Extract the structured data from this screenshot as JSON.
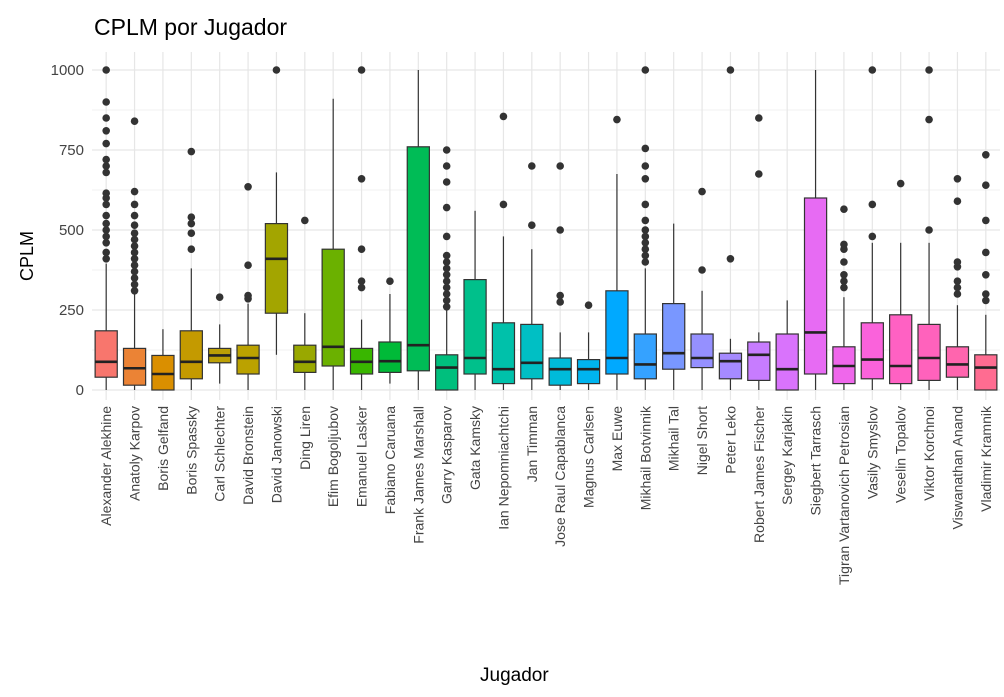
{
  "chart_data": {
    "type": "box",
    "title": "CPLM por Jugador",
    "xlabel": "Jugador",
    "ylabel": "CPLM",
    "ylim": [
      0,
      1000
    ],
    "yticks": [
      0,
      250,
      500,
      750,
      1000
    ],
    "grid": true,
    "legend": "none",
    "categories": [
      "Alexander Alekhine",
      "Anatoly Karpov",
      "Boris Gelfand",
      "Boris Spassky",
      "Carl Schlechter",
      "David Bronstein",
      "David Janowski",
      "Ding Liren",
      "Efim Bogoljubov",
      "Emanuel Lasker",
      "Fabiano Caruana",
      "Frank James Marshall",
      "Garry Kasparov",
      "Gata Kamsky",
      "Ian Nepomniachtchi",
      "Jan Timman",
      "Jose Raul Capablanca",
      "Magnus Carlsen",
      "Max Euwe",
      "Mikhail Botvinnik",
      "Mikhail Tal",
      "Nigel Short",
      "Peter Leko",
      "Robert James Fischer",
      "Sergey Karjakin",
      "Siegbert Tarrasch",
      "Tigran Vartanovich Petrosian",
      "Vasily Smyslov",
      "Veselin Topalov",
      "Viktor Korchnoi",
      "Viswanathan Anand",
      "Vladimir Kramnik"
    ],
    "boxes": [
      {
        "q1": 40,
        "median": 88,
        "q3": 185,
        "whisker_low": 0,
        "whisker_high": 395,
        "outliers": [
          410,
          430,
          460,
          480,
          500,
          520,
          545,
          580,
          600,
          615,
          680,
          700,
          720,
          770,
          810,
          850,
          900,
          1000
        ],
        "color": "#F8766D"
      },
      {
        "q1": 15,
        "median": 68,
        "q3": 130,
        "whisker_low": 0,
        "whisker_high": 300,
        "outliers": [
          310,
          330,
          350,
          370,
          390,
          410,
          430,
          450,
          470,
          490,
          515,
          545,
          580,
          620,
          840
        ],
        "color": "#EB8335"
      },
      {
        "q1": 0,
        "median": 50,
        "q3": 108,
        "whisker_low": 0,
        "whisker_high": 190,
        "outliers": [],
        "color": "#DA8F00"
      },
      {
        "q1": 35,
        "median": 88,
        "q3": 185,
        "whisker_low": 0,
        "whisker_high": 380,
        "outliers": [
          440,
          490,
          520,
          540,
          745
        ],
        "color": "#C49A00"
      },
      {
        "q1": 85,
        "median": 108,
        "q3": 130,
        "whisker_low": 20,
        "whisker_high": 205,
        "outliers": [
          290
        ],
        "color": "#BCA005"
      },
      {
        "q1": 50,
        "median": 100,
        "q3": 140,
        "whisker_low": 0,
        "whisker_high": 270,
        "outliers": [
          285,
          295,
          390,
          635
        ],
        "color": "#BBA200"
      },
      {
        "q1": 240,
        "median": 410,
        "q3": 520,
        "whisker_low": 110,
        "whisker_high": 680,
        "outliers": [
          1000
        ],
        "color": "#A3A500"
      },
      {
        "q1": 55,
        "median": 88,
        "q3": 140,
        "whisker_low": 0,
        "whisker_high": 240,
        "outliers": [
          530
        ],
        "color": "#99A800"
      },
      {
        "q1": 75,
        "median": 135,
        "q3": 440,
        "whisker_low": 0,
        "whisker_high": 910,
        "outliers": [],
        "color": "#6BB100"
      },
      {
        "q1": 50,
        "median": 88,
        "q3": 130,
        "whisker_low": 0,
        "whisker_high": 220,
        "outliers": [
          320,
          340,
          440,
          660,
          1000
        ],
        "color": "#39B600"
      },
      {
        "q1": 55,
        "median": 90,
        "q3": 150,
        "whisker_low": 20,
        "whisker_high": 300,
        "outliers": [
          340
        ],
        "color": "#00BA38"
      },
      {
        "q1": 60,
        "median": 140,
        "q3": 760,
        "whisker_low": 0,
        "whisker_high": 1000,
        "outliers": [],
        "color": "#00BC56"
      },
      {
        "q1": 0,
        "median": 70,
        "q3": 110,
        "whisker_low": 0,
        "whisker_high": 250,
        "outliers": [
          260,
          280,
          300,
          320,
          340,
          360,
          380,
          400,
          420,
          480,
          570,
          650,
          700,
          750
        ],
        "color": "#00BF7D"
      },
      {
        "q1": 50,
        "median": 100,
        "q3": 345,
        "whisker_low": 0,
        "whisker_high": 560,
        "outliers": [],
        "color": "#00C08B"
      },
      {
        "q1": 20,
        "median": 65,
        "q3": 210,
        "whisker_low": 0,
        "whisker_high": 480,
        "outliers": [
          580,
          855
        ],
        "color": "#00C1AA"
      },
      {
        "q1": 35,
        "median": 85,
        "q3": 205,
        "whisker_low": 0,
        "whisker_high": 440,
        "outliers": [
          515,
          700
        ],
        "color": "#00BFC4"
      },
      {
        "q1": 15,
        "median": 65,
        "q3": 100,
        "whisker_low": 0,
        "whisker_high": 180,
        "outliers": [
          275,
          295,
          500,
          700
        ],
        "color": "#00BBDA"
      },
      {
        "q1": 20,
        "median": 65,
        "q3": 95,
        "whisker_low": 0,
        "whisker_high": 180,
        "outliers": [
          265
        ],
        "color": "#00B4EF"
      },
      {
        "q1": 50,
        "median": 100,
        "q3": 310,
        "whisker_low": 0,
        "whisker_high": 675,
        "outliers": [
          845
        ],
        "color": "#00A9FF"
      },
      {
        "q1": 35,
        "median": 80,
        "q3": 175,
        "whisker_low": 0,
        "whisker_high": 380,
        "outliers": [
          400,
          420,
          440,
          460,
          480,
          500,
          530,
          580,
          660,
          700,
          755,
          1000
        ],
        "color": "#35A2FF"
      },
      {
        "q1": 65,
        "median": 115,
        "q3": 270,
        "whisker_low": 0,
        "whisker_high": 520,
        "outliers": [],
        "color": "#7997FF"
      },
      {
        "q1": 70,
        "median": 100,
        "q3": 175,
        "whisker_low": 0,
        "whisker_high": 310,
        "outliers": [
          375,
          620
        ],
        "color": "#9590FF"
      },
      {
        "q1": 35,
        "median": 90,
        "q3": 115,
        "whisker_low": 0,
        "whisker_high": 160,
        "outliers": [
          410,
          1000
        ],
        "color": "#A58AFF"
      },
      {
        "q1": 30,
        "median": 110,
        "q3": 150,
        "whisker_low": 0,
        "whisker_high": 180,
        "outliers": [
          675,
          850
        ],
        "color": "#C77CFF"
      },
      {
        "q1": 0,
        "median": 65,
        "q3": 175,
        "whisker_low": 0,
        "whisker_high": 280,
        "outliers": [],
        "color": "#D973FC"
      },
      {
        "q1": 50,
        "median": 180,
        "q3": 600,
        "whisker_low": 0,
        "whisker_high": 1000,
        "outliers": [],
        "color": "#E76BF3"
      },
      {
        "q1": 20,
        "median": 75,
        "q3": 135,
        "whisker_low": 0,
        "whisker_high": 290,
        "outliers": [
          320,
          340,
          360,
          400,
          440,
          455,
          565
        ],
        "color": "#EF67EB"
      },
      {
        "q1": 35,
        "median": 95,
        "q3": 210,
        "whisker_low": 0,
        "whisker_high": 460,
        "outliers": [
          480,
          580,
          1000
        ],
        "color": "#FA62DB"
      },
      {
        "q1": 20,
        "median": 75,
        "q3": 235,
        "whisker_low": 0,
        "whisker_high": 460,
        "outliers": [
          645
        ],
        "color": "#FF61C3"
      },
      {
        "q1": 30,
        "median": 100,
        "q3": 205,
        "whisker_low": 0,
        "whisker_high": 460,
        "outliers": [
          500,
          845,
          1000
        ],
        "color": "#FF62BC"
      },
      {
        "q1": 40,
        "median": 80,
        "q3": 135,
        "whisker_low": 0,
        "whisker_high": 265,
        "outliers": [
          300,
          320,
          340,
          385,
          400,
          590,
          660
        ],
        "color": "#FF65AE"
      },
      {
        "q1": 0,
        "median": 70,
        "q3": 110,
        "whisker_low": 0,
        "whisker_high": 235,
        "outliers": [
          280,
          300,
          360,
          430,
          530,
          640,
          735
        ],
        "color": "#FF6C91"
      }
    ]
  }
}
